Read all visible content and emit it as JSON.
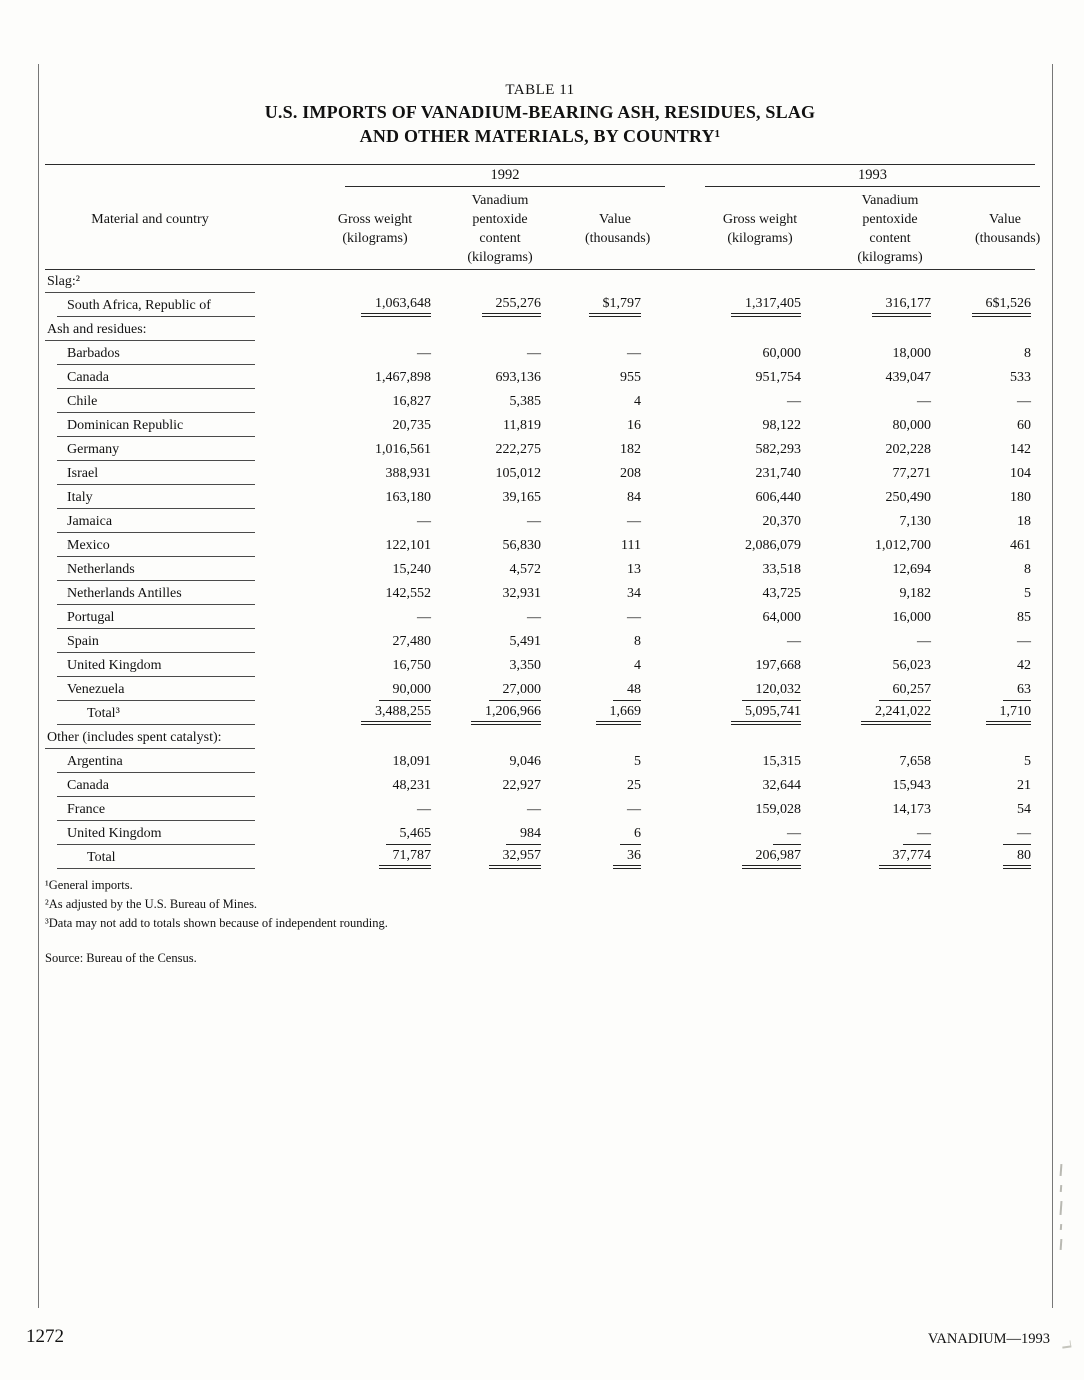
{
  "page": {
    "page_number": "1272",
    "running_footer": "VANADIUM—1993"
  },
  "table": {
    "caption": "TABLE 11",
    "title_lines": [
      "U.S. IMPORTS OF VANADIUM-BEARING ASH, RESIDUES, SLAG",
      "AND OTHER MATERIALS, BY COUNTRY¹"
    ],
    "year_groups": [
      "1992",
      "1993"
    ],
    "stub_header": "Material and country",
    "column_headers": [
      "Gross weight\n(kilograms)",
      "Vanadium\npentoxide\ncontent\n(kilograms)",
      "Value\n(thousands)",
      "Gross weight\n(kilograms)",
      "Vanadium\npentoxide\ncontent\n(kilograms)",
      "Value\n(thousands)"
    ],
    "sections": [
      {
        "header": "Slag:²",
        "rows": [
          {
            "label": "South Africa, Republic of",
            "style": "country",
            "rule": "double",
            "values": [
              "1,063,648",
              "255,276",
              "$1,797",
              "1,317,405",
              "316,177",
              "6$1,526"
            ]
          }
        ]
      },
      {
        "header": "Ash and residues:",
        "rows": [
          {
            "label": "Barbados",
            "style": "country",
            "rule": "none",
            "values": [
              "—",
              "—",
              "—",
              "60,000",
              "18,000",
              "8"
            ]
          },
          {
            "label": "Canada",
            "style": "country",
            "rule": "none",
            "values": [
              "1,467,898",
              "693,136",
              "955",
              "951,754",
              "439,047",
              "533"
            ]
          },
          {
            "label": "Chile",
            "style": "country",
            "rule": "none",
            "values": [
              "16,827",
              "5,385",
              "4",
              "—",
              "—",
              "—"
            ]
          },
          {
            "label": "Dominican Republic",
            "style": "country",
            "rule": "none",
            "values": [
              "20,735",
              "11,819",
              "16",
              "98,122",
              "80,000",
              "60"
            ]
          },
          {
            "label": "Germany",
            "style": "country",
            "rule": "none",
            "values": [
              "1,016,561",
              "222,275",
              "182",
              "582,293",
              "202,228",
              "142"
            ]
          },
          {
            "label": "Israel",
            "style": "country",
            "rule": "none",
            "values": [
              "388,931",
              "105,012",
              "208",
              "231,740",
              "77,271",
              "104"
            ]
          },
          {
            "label": "Italy",
            "style": "country",
            "rule": "none",
            "values": [
              "163,180",
              "39,165",
              "84",
              "606,440",
              "250,490",
              "180"
            ]
          },
          {
            "label": "Jamaica",
            "style": "country",
            "rule": "none",
            "values": [
              "—",
              "—",
              "—",
              "20,370",
              "7,130",
              "18"
            ]
          },
          {
            "label": "Mexico",
            "style": "country",
            "rule": "none",
            "values": [
              "122,101",
              "56,830",
              "111",
              "2,086,079",
              "1,012,700",
              "461"
            ]
          },
          {
            "label": "Netherlands",
            "style": "country",
            "rule": "none",
            "values": [
              "15,240",
              "4,572",
              "13",
              "33,518",
              "12,694",
              "8"
            ]
          },
          {
            "label": "Netherlands Antilles",
            "style": "country",
            "rule": "none",
            "values": [
              "142,552",
              "32,931",
              "34",
              "43,725",
              "9,182",
              "5"
            ]
          },
          {
            "label": "Portugal",
            "style": "country",
            "rule": "none",
            "values": [
              "—",
              "—",
              "—",
              "64,000",
              "16,000",
              "85"
            ]
          },
          {
            "label": "Spain",
            "style": "country",
            "rule": "none",
            "values": [
              "27,480",
              "5,491",
              "8",
              "—",
              "—",
              "—"
            ]
          },
          {
            "label": "United Kingdom",
            "style": "country",
            "rule": "none",
            "values": [
              "16,750",
              "3,350",
              "4",
              "197,668",
              "56,023",
              "42"
            ]
          },
          {
            "label": "Venezuela",
            "style": "country",
            "rule": "single",
            "values": [
              "90,000",
              "27,000",
              "48",
              "120,032",
              "60,257",
              "63"
            ]
          },
          {
            "label": "Total³",
            "style": "total",
            "rule": "double",
            "values": [
              "3,488,255",
              "1,206,966",
              "1,669",
              "5,095,741",
              "2,241,022",
              "1,710"
            ]
          }
        ]
      },
      {
        "header": "Other (includes spent catalyst):",
        "rows": [
          {
            "label": "Argentina",
            "style": "country",
            "rule": "none",
            "values": [
              "18,091",
              "9,046",
              "5",
              "15,315",
              "7,658",
              "5"
            ]
          },
          {
            "label": "Canada",
            "style": "country",
            "rule": "none",
            "values": [
              "48,231",
              "22,927",
              "25",
              "32,644",
              "15,943",
              "21"
            ]
          },
          {
            "label": "France",
            "style": "country",
            "rule": "none",
            "values": [
              "—",
              "—",
              "—",
              "159,028",
              "14,173",
              "54"
            ]
          },
          {
            "label": "United Kingdom",
            "style": "country",
            "rule": "single",
            "values": [
              "5,465",
              "984",
              "6",
              "—",
              "—",
              "—"
            ]
          },
          {
            "label": "Total",
            "style": "total",
            "rule": "double",
            "values": [
              "71,787",
              "32,957",
              "36",
              "206,987",
              "37,774",
              "80"
            ]
          }
        ]
      }
    ],
    "footnotes": [
      "¹General imports.",
      "²As adjusted by the U.S. Bureau of Mines.",
      "³Data may not add to totals shown because of independent rounding."
    ],
    "source": "Source: Bureau of the Census."
  }
}
